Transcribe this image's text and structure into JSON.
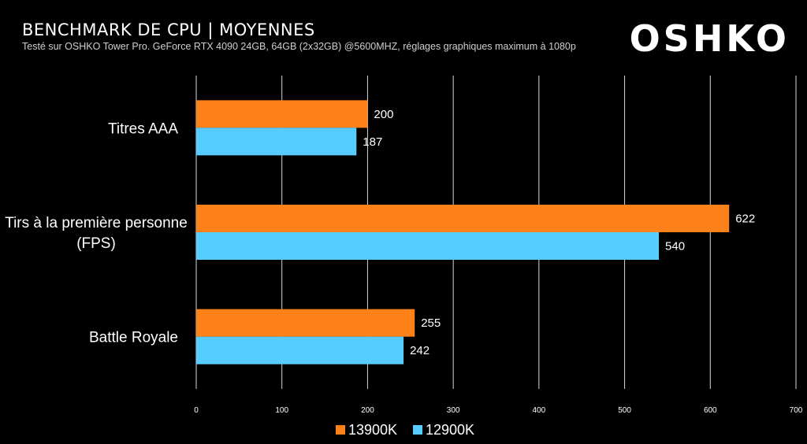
{
  "header": {
    "title": "BENCHMARK DE CPU | MOYENNES",
    "subtitle": "Testé sur OSHKO Tower Pro. GeForce RTX 4090 24GB, 64GB (2x32GB) @5600MHZ, réglages graphiques maximum à 1080p",
    "logo_text": "OSHKO"
  },
  "chart_data": {
    "type": "bar",
    "orientation": "horizontal",
    "categories": [
      [
        "Titres AAA"
      ],
      [
        "Tirs à la première personne",
        "(FPS)"
      ],
      [
        "Battle Royale"
      ]
    ],
    "series": [
      {
        "name": "13900K",
        "color": "#fe8219",
        "values": [
          200,
          622,
          255
        ]
      },
      {
        "name": "12900K",
        "color": "#56ccff",
        "values": [
          187,
          540,
          242
        ]
      }
    ],
    "xlim": [
      0,
      700
    ],
    "xticks": [
      0,
      100,
      200,
      300,
      400,
      500,
      600,
      700
    ],
    "grid": true,
    "legend_position": "bottom"
  }
}
